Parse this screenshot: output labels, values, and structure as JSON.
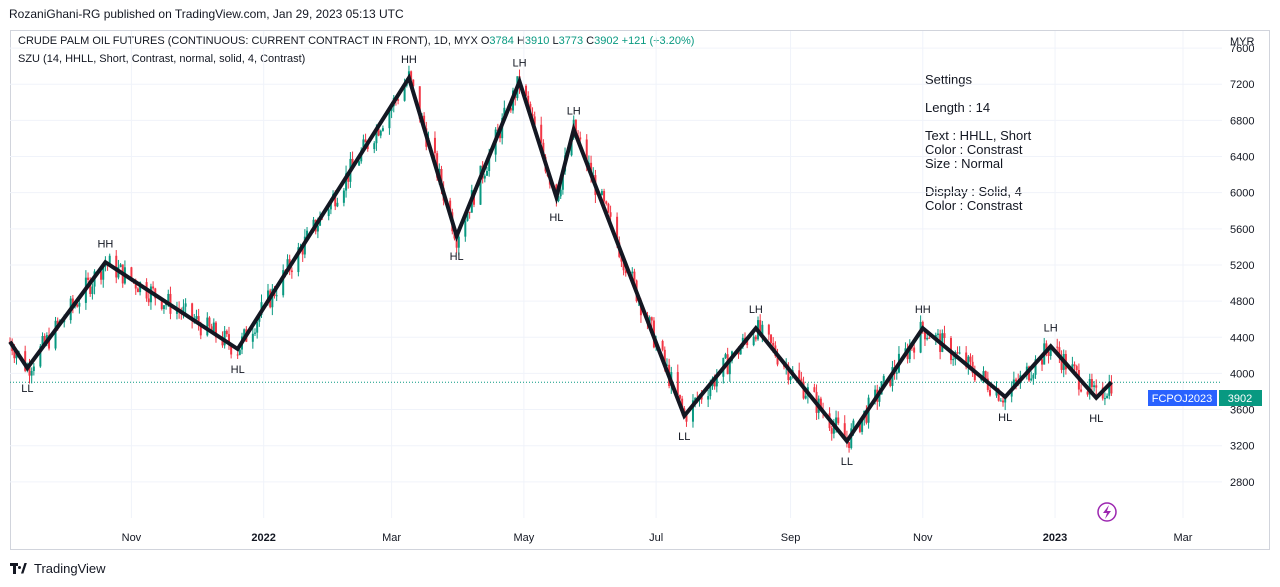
{
  "publisher": "RozaniGhani-RG published on TradingView.com, Jan 29, 2023 05:13 UTC",
  "legend": {
    "symbol": "CRUDE PALM OIL FUTURES (CONTINUOUS: CURRENT CONTRACT IN FRONT), 1D, MYX",
    "o_label": "O",
    "o_value": "3784",
    "h_label": "H",
    "h_value": "3910",
    "l_label": "L",
    "l_value": "3773",
    "c_label": "C",
    "c_value": "3902",
    "change": "+121 (+3.20%)",
    "indicator": "SZU (14, HHLL, Short, Contrast, normal, solid, 4, Contrast)"
  },
  "settings_text": "Settings\n\nLength : 14\n\nText : HHLL, Short\nColor : Constrast\nSize : Normal\n\nDisplay : Solid, 4\nColor : Constrast",
  "footer": {
    "brand": "TradingView"
  },
  "colors": {
    "up": "#089981",
    "down": "#f23645",
    "zigzag": "#131722",
    "price_tag": "#2962ff"
  },
  "chart_data": {
    "type": "line",
    "title": "CRUDE PALM OIL FUTURES (CONTINUOUS: CURRENT CONTRACT IN FRONT), 1D, MYX",
    "currency": "MYR",
    "y_ticks": [
      2800,
      3200,
      3600,
      4000,
      4400,
      4800,
      5200,
      5600,
      6000,
      6400,
      6800,
      7200,
      7600
    ],
    "ylim": [
      2400,
      7800
    ],
    "x_ticks": [
      "Nov",
      "2022",
      "Mar",
      "May",
      "Jul",
      "Sep",
      "Nov",
      "2023",
      "Mar"
    ],
    "x_tick_dates": [
      "2021-11-01",
      "2022-01-01",
      "2022-03-01",
      "2022-05-01",
      "2022-07-01",
      "2022-09-01",
      "2022-11-01",
      "2023-01-01",
      "2023-03-01"
    ],
    "xlim": [
      "2021-09-06",
      "2023-03-19"
    ],
    "bold_ticks": [
      "2022",
      "2023"
    ],
    "last_price": {
      "label": "FCPOJ2023",
      "value": 3902
    },
    "zigzag_series": {
      "name": "SZU",
      "points": [
        {
          "date": "2021-09-06",
          "value": 4350,
          "label": ""
        },
        {
          "date": "2021-09-14",
          "value": 4060,
          "label": "LL"
        },
        {
          "date": "2021-10-20",
          "value": 5230,
          "label": "HH"
        },
        {
          "date": "2021-12-20",
          "value": 4270,
          "label": "HL"
        },
        {
          "date": "2022-03-09",
          "value": 7270,
          "label": "HH"
        },
        {
          "date": "2022-03-31",
          "value": 5520,
          "label": "HL"
        },
        {
          "date": "2022-04-29",
          "value": 7230,
          "label": "LH"
        },
        {
          "date": "2022-05-16",
          "value": 5950,
          "label": "HL"
        },
        {
          "date": "2022-05-24",
          "value": 6700,
          "label": "LH"
        },
        {
          "date": "2022-07-14",
          "value": 3530,
          "label": "LL"
        },
        {
          "date": "2022-08-16",
          "value": 4500,
          "label": "LH"
        },
        {
          "date": "2022-09-27",
          "value": 3250,
          "label": "LL"
        },
        {
          "date": "2022-11-01",
          "value": 4500,
          "label": "HH"
        },
        {
          "date": "2022-12-09",
          "value": 3740,
          "label": "HL"
        },
        {
          "date": "2022-12-30",
          "value": 4300,
          "label": "LH"
        },
        {
          "date": "2023-01-20",
          "value": 3730,
          "label": "HL"
        },
        {
          "date": "2023-01-27",
          "value": 3902,
          "label": ""
        }
      ]
    }
  }
}
